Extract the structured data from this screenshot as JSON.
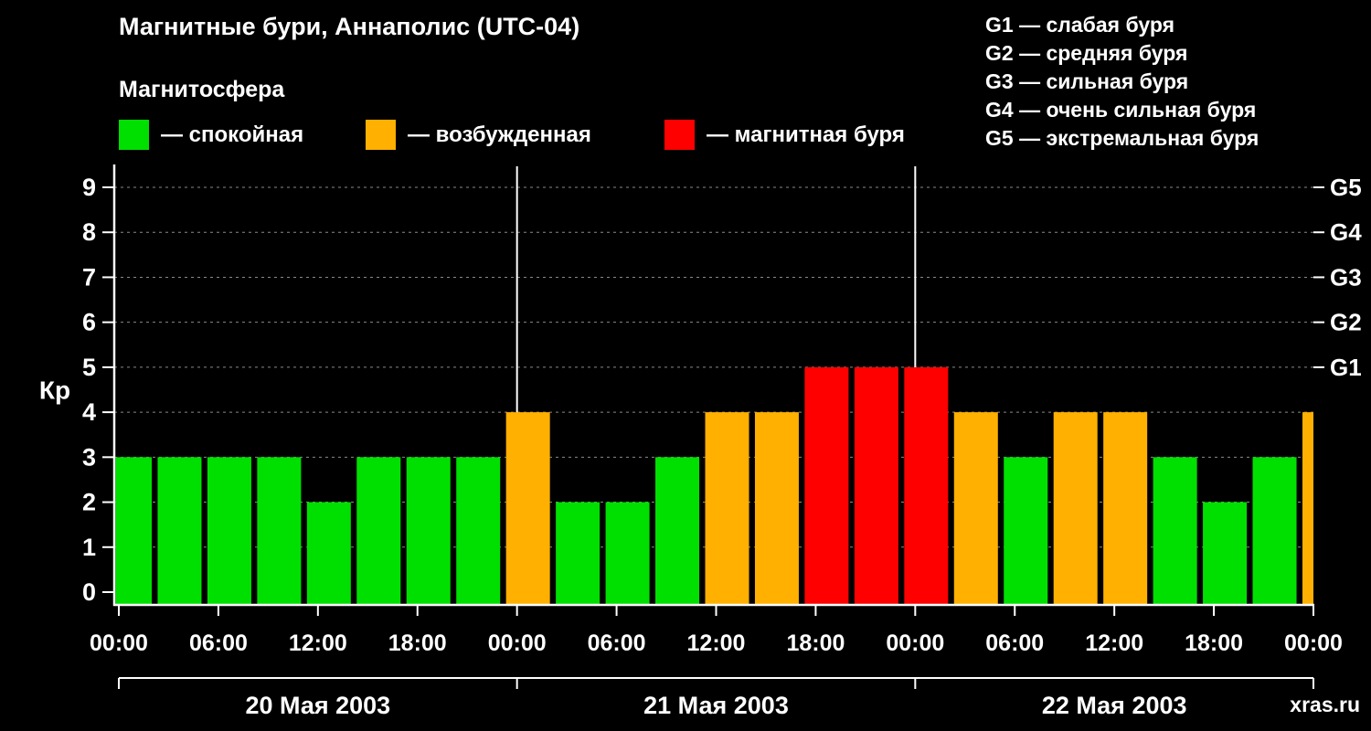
{
  "title": "Магнитные бури, Аннаполис (UTC-04)",
  "subtitle": "Магнитосфера",
  "legend": [
    {
      "key": "quiet",
      "label": "— спокойная",
      "color": "#00e000"
    },
    {
      "key": "active",
      "label": "— возбужденная",
      "color": "#ffb000"
    },
    {
      "key": "storm",
      "label": "— магнитная буря",
      "color": "#ff0000"
    }
  ],
  "g_scale_legend": [
    {
      "text": "G1 — слабая буря"
    },
    {
      "text": "G2 — средняя буря"
    },
    {
      "text": "G3 — сильная буря"
    },
    {
      "text": "G4 — очень сильная буря"
    },
    {
      "text": "G5 — экстремальная буря"
    }
  ],
  "watermark": "xras.ru",
  "chart_data": {
    "type": "bar",
    "title": "Магнитные бури, Аннаполис (UTC-04)",
    "ylabel": "Кр",
    "ylim": [
      0,
      9
    ],
    "interval_hours": 3,
    "grid": "dashed-horizontal",
    "legend_position": "top",
    "time_tick_labels": [
      "00:00",
      "06:00",
      "12:00",
      "18:00"
    ],
    "days": [
      {
        "date": "20 Мая 2003",
        "values": [
          3,
          3,
          3,
          3,
          2,
          3,
          3,
          3
        ]
      },
      {
        "date": "21 Мая 2003",
        "values": [
          4,
          2,
          2,
          3,
          4,
          4,
          5,
          5
        ]
      },
      {
        "date": "22 Мая 2003",
        "values": [
          5,
          4,
          3,
          4,
          4,
          3,
          2,
          3
        ]
      }
    ],
    "next_interval_partial_value": 4,
    "color_rule": {
      "quiet_kp_max": 3,
      "storm_kp_min": 5
    },
    "colors": {
      "quiet": "#00e000",
      "active": "#ffb000",
      "storm": "#ff0000"
    },
    "right_axis_g_levels": [
      {
        "label": "G1",
        "kp": 5
      },
      {
        "label": "G2",
        "kp": 6
      },
      {
        "label": "G3",
        "kp": 7
      },
      {
        "label": "G4",
        "kp": 8
      },
      {
        "label": "G5",
        "kp": 9
      }
    ]
  }
}
